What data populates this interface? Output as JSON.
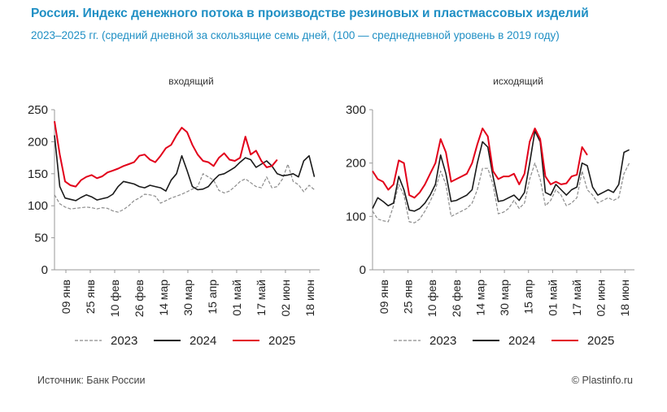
{
  "header": {
    "title": "Россия. Индекс денежного потока в производстве резиновых и пластмассовых изделий",
    "subtitle": "2023–2025 гг.  (средний дневной за скользящие семь дней, (100 — среднедневной уровень в 2019 году)"
  },
  "footer": {
    "source": "Источник: Банк России",
    "brand": "© Plastinfo.ru"
  },
  "colors": {
    "2023": "#8c8c8c",
    "2024": "#1a1a1a",
    "2025": "#e2001a",
    "axis": "#999999"
  },
  "chart_data": [
    {
      "type": "line",
      "title": "входящий",
      "ylim": [
        0,
        250
      ],
      "yticks": [
        0,
        50,
        100,
        150,
        200,
        250
      ],
      "xticks": [
        "09 янв",
        "25 янв",
        "10 фев",
        "26 фев",
        "14 мар",
        "30 мар",
        "15 апр",
        "01 май",
        "17 май",
        "02 июн",
        "18 июн"
      ],
      "xlim": [
        0,
        25
      ],
      "grid": false,
      "legend": "bottom",
      "series": [
        {
          "name": "2023",
          "style": "dashed",
          "x": [
            0,
            0.5,
            1,
            1.5,
            2,
            2.5,
            3,
            3.5,
            4,
            4.5,
            5,
            5.5,
            6,
            6.5,
            7,
            7.5,
            8,
            8.5,
            9,
            9.5,
            10,
            10.5,
            11,
            11.5,
            12,
            12.5,
            13,
            13.5,
            14,
            14.5,
            15,
            15.5,
            16,
            16.5,
            17,
            17.5,
            18,
            18.5,
            19,
            19.5,
            20,
            20.5,
            21,
            21.5,
            22,
            22.5,
            23,
            23.5,
            24,
            24.5
          ],
          "values": [
            117,
            103,
            98,
            95,
            96,
            97,
            98,
            97,
            95,
            97,
            96,
            92,
            90,
            94,
            100,
            108,
            112,
            118,
            117,
            115,
            104,
            108,
            112,
            115,
            118,
            122,
            126,
            130,
            150,
            145,
            140,
            124,
            120,
            123,
            130,
            138,
            142,
            136,
            130,
            128,
            145,
            128,
            130,
            142,
            165,
            138,
            133,
            122,
            132,
            125
          ]
        },
        {
          "name": "2024",
          "style": "solid",
          "x": [
            0,
            0.5,
            1,
            1.5,
            2,
            2.5,
            3,
            3.5,
            4,
            4.5,
            5,
            5.5,
            6,
            6.5,
            7,
            7.5,
            8,
            8.5,
            9,
            9.5,
            10,
            10.5,
            11,
            11.5,
            12,
            12.5,
            13,
            13.5,
            14,
            14.5,
            15,
            15.5,
            16,
            16.5,
            17,
            17.5,
            18,
            18.5,
            19,
            19.5,
            20,
            20.5,
            21,
            21.5,
            22,
            22.5,
            23,
            23.5,
            24,
            24.5
          ],
          "values": [
            210,
            130,
            112,
            110,
            108,
            113,
            117,
            114,
            109,
            111,
            113,
            118,
            130,
            138,
            136,
            134,
            130,
            128,
            132,
            130,
            128,
            123,
            140,
            150,
            178,
            155,
            130,
            125,
            126,
            130,
            140,
            148,
            150,
            155,
            160,
            168,
            175,
            172,
            160,
            165,
            170,
            162,
            150,
            147,
            148,
            150,
            145,
            170,
            178,
            145
          ]
        },
        {
          "name": "2025",
          "style": "solid",
          "x": [
            0,
            0.5,
            1,
            1.5,
            2,
            2.5,
            3,
            3.5,
            4,
            4.5,
            5,
            5.5,
            6,
            6.5,
            7,
            7.5,
            8,
            8.5,
            9,
            9.5,
            10,
            10.5,
            11,
            11.5,
            12,
            12.5,
            13,
            13.5,
            14,
            14.5,
            15,
            15.5,
            16,
            16.5,
            17,
            17.5,
            18,
            18.5,
            19,
            19.5,
            20,
            20.5,
            21
          ],
          "values": [
            232,
            180,
            138,
            132,
            130,
            140,
            145,
            148,
            143,
            146,
            152,
            155,
            158,
            162,
            165,
            168,
            178,
            180,
            172,
            168,
            178,
            190,
            195,
            210,
            222,
            215,
            195,
            180,
            170,
            168,
            162,
            175,
            182,
            172,
            170,
            175,
            208,
            180,
            186,
            170,
            160,
            162,
            172
          ]
        }
      ]
    },
    {
      "type": "line",
      "title": "исходящий",
      "ylim": [
        0,
        300
      ],
      "yticks": [
        0,
        100,
        200,
        300
      ],
      "xticks": [
        "09 янв",
        "25 янв",
        "10 фев",
        "26 фев",
        "14 мар",
        "30 мар",
        "15 апр",
        "01 май",
        "17 май",
        "02 июн",
        "18 июн"
      ],
      "xlim": [
        0,
        25
      ],
      "grid": false,
      "legend": "bottom",
      "series": [
        {
          "name": "2023",
          "style": "dashed",
          "x": [
            0,
            0.5,
            1,
            1.5,
            2,
            2.5,
            3,
            3.5,
            4,
            4.5,
            5,
            5.5,
            6,
            6.5,
            7,
            7.5,
            8,
            8.5,
            9,
            9.5,
            10,
            10.5,
            11,
            11.5,
            12,
            12.5,
            13,
            13.5,
            14,
            14.5,
            15,
            15.5,
            16,
            16.5,
            17,
            17.5,
            18,
            18.5,
            19,
            19.5,
            20,
            20.5,
            21,
            21.5,
            22,
            22.5,
            23,
            23.5,
            24,
            24.5
          ],
          "values": [
            110,
            95,
            92,
            90,
            120,
            160,
            140,
            90,
            88,
            95,
            110,
            128,
            150,
            185,
            160,
            100,
            105,
            110,
            115,
            125,
            150,
            190,
            190,
            160,
            105,
            108,
            115,
            130,
            115,
            125,
            170,
            200,
            170,
            120,
            130,
            150,
            140,
            120,
            125,
            135,
            185,
            150,
            140,
            125,
            130,
            135,
            130,
            135,
            180,
            200
          ]
        },
        {
          "name": "2024",
          "style": "solid",
          "x": [
            0,
            0.5,
            1,
            1.5,
            2,
            2.5,
            3,
            3.5,
            4,
            4.5,
            5,
            5.5,
            6,
            6.5,
            7,
            7.5,
            8,
            8.5,
            9,
            9.5,
            10,
            10.5,
            11,
            11.5,
            12,
            12.5,
            13,
            13.5,
            14,
            14.5,
            15,
            15.5,
            16,
            16.5,
            17,
            17.5,
            18,
            18.5,
            19,
            19.5,
            20,
            20.5,
            21,
            21.5,
            22,
            22.5,
            23,
            23.5,
            24,
            24.5
          ],
          "values": [
            115,
            135,
            128,
            120,
            125,
            175,
            150,
            112,
            110,
            115,
            125,
            140,
            160,
            215,
            180,
            128,
            130,
            135,
            140,
            150,
            200,
            240,
            230,
            175,
            128,
            130,
            135,
            140,
            130,
            145,
            200,
            260,
            240,
            145,
            140,
            160,
            150,
            140,
            150,
            155,
            200,
            195,
            155,
            140,
            145,
            150,
            145,
            160,
            220,
            225
          ]
        },
        {
          "name": "2025",
          "style": "solid",
          "x": [
            0,
            0.5,
            1,
            1.5,
            2,
            2.5,
            3,
            3.5,
            4,
            4.5,
            5,
            5.5,
            6,
            6.5,
            7,
            7.5,
            8,
            8.5,
            9,
            9.5,
            10,
            10.5,
            11,
            11.5,
            12,
            12.5,
            13,
            13.5,
            14,
            14.5,
            15,
            15.5,
            16,
            16.5,
            17,
            17.5,
            18,
            18.5,
            19,
            19.5,
            20,
            20.5
          ],
          "values": [
            185,
            170,
            165,
            150,
            160,
            205,
            200,
            140,
            135,
            145,
            160,
            180,
            200,
            245,
            220,
            165,
            170,
            175,
            180,
            200,
            235,
            265,
            250,
            185,
            170,
            175,
            175,
            180,
            160,
            180,
            240,
            265,
            245,
            175,
            160,
            165,
            160,
            162,
            175,
            178,
            230,
            215
          ]
        }
      ]
    }
  ]
}
